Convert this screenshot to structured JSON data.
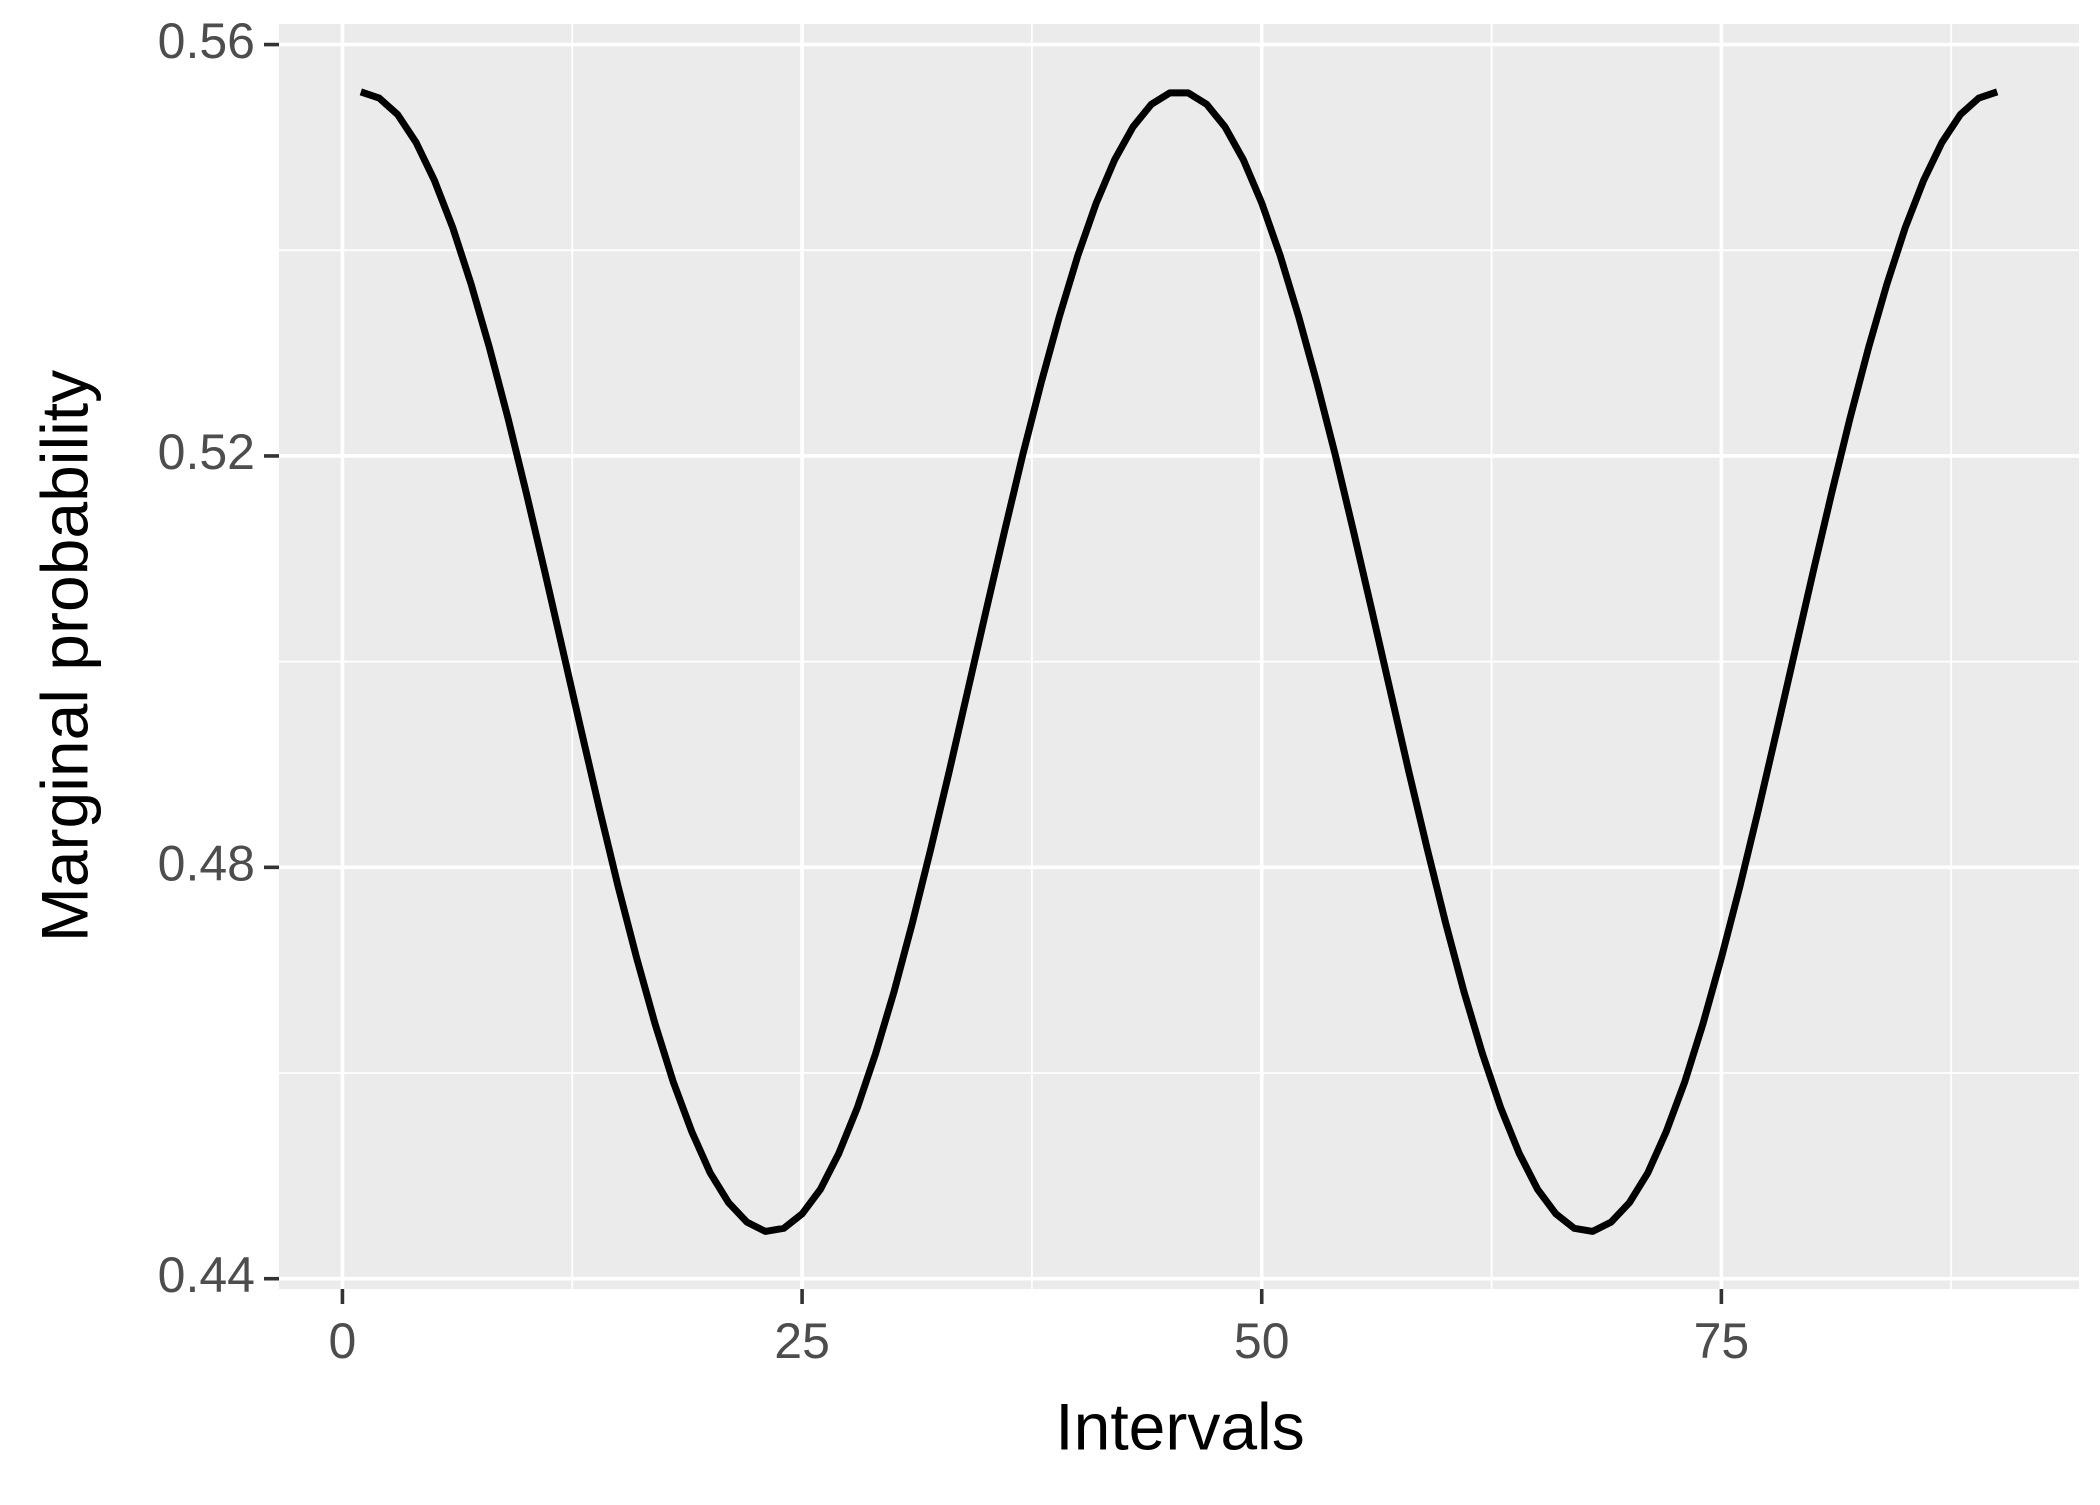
{
  "chart_data": {
    "type": "line",
    "x_label": "Intervals",
    "y_label": "Marginal probability",
    "x": [
      1,
      2,
      3,
      4,
      5,
      6,
      7,
      8,
      9,
      10,
      11,
      12,
      13,
      14,
      15,
      16,
      17,
      18,
      19,
      20,
      21,
      22,
      23,
      24,
      25,
      26,
      27,
      28,
      29,
      30,
      31,
      32,
      33,
      34,
      35,
      36,
      37,
      38,
      39,
      40,
      41,
      42,
      43,
      44,
      45,
      46,
      47,
      48,
      49,
      50,
      51,
      52,
      53,
      54,
      55,
      56,
      57,
      58,
      59,
      60,
      61,
      62,
      63,
      64,
      65,
      66,
      67,
      68,
      69,
      70,
      71,
      72,
      73,
      74,
      75,
      76,
      77,
      78,
      79,
      80,
      81,
      82,
      83,
      84,
      85,
      86,
      87,
      88,
      89,
      90
    ],
    "series": [
      {
        "color": "#000000",
        "values": [
          0.5554,
          0.5548,
          0.5532,
          0.5505,
          0.5468,
          0.5422,
          0.5367,
          0.5305,
          0.5237,
          0.5164,
          0.5088,
          0.501,
          0.4932,
          0.4855,
          0.4781,
          0.4712,
          0.4648,
          0.4591,
          0.4543,
          0.4503,
          0.4474,
          0.4455,
          0.4446,
          0.4449,
          0.4463,
          0.4487,
          0.4522,
          0.4566,
          0.4619,
          0.4679,
          0.4746,
          0.4818,
          0.4893,
          0.4971,
          0.5049,
          0.5126,
          0.5201,
          0.5271,
          0.5336,
          0.5395,
          0.5446,
          0.5488,
          0.552,
          0.5542,
          0.5553,
          0.5553,
          0.5542,
          0.552,
          0.5488,
          0.5446,
          0.5395,
          0.5336,
          0.5271,
          0.5201,
          0.5126,
          0.5049,
          0.4971,
          0.4893,
          0.4818,
          0.4746,
          0.4679,
          0.4619,
          0.4566,
          0.4522,
          0.4487,
          0.4463,
          0.4449,
          0.4446,
          0.4455,
          0.4474,
          0.4503,
          0.4543,
          0.4591,
          0.4648,
          0.4712,
          0.4781,
          0.4855,
          0.4932,
          0.501,
          0.5088,
          0.5164,
          0.5237,
          0.5305,
          0.5367,
          0.5422,
          0.5468,
          0.5505,
          0.5532,
          0.5548,
          0.5554
        ]
      }
    ],
    "xlim": [
      -3.45,
      94.45
    ],
    "ylim": [
      0.439,
      0.562
    ],
    "xticks": [
      0,
      25,
      50,
      75
    ],
    "yticks": [
      0.44,
      0.48,
      0.52,
      0.56
    ],
    "xminor": [
      12.5,
      37.5,
      62.5,
      87.5
    ],
    "yminor": [
      0.46,
      0.5,
      0.54
    ],
    "grid": true
  }
}
